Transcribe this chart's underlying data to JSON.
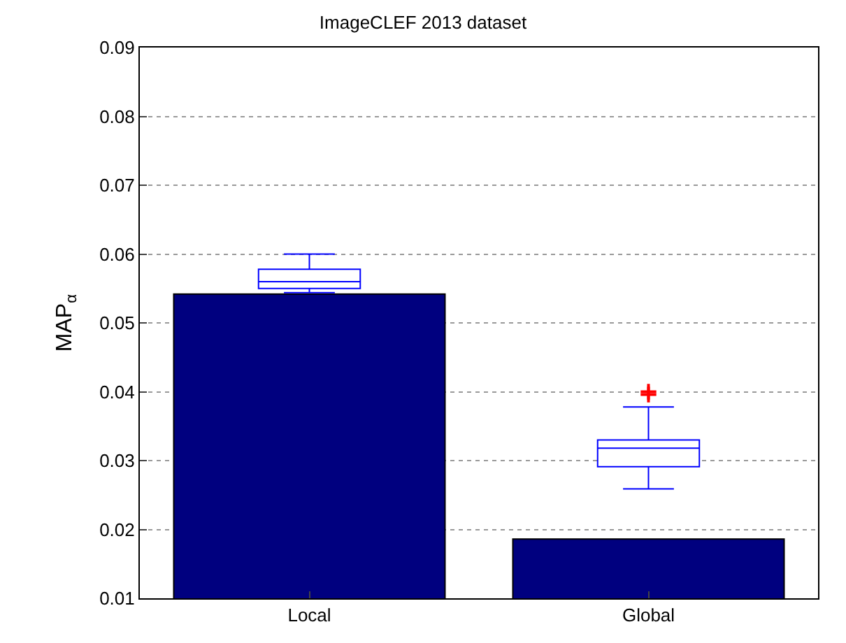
{
  "chart_data": {
    "type": "bar",
    "title": "ImageCLEF 2013 dataset",
    "ylabel": "MAP$_{α}$",
    "categories": [
      "Local",
      "Global"
    ],
    "series": [
      {
        "color": "#00007f",
        "values": [
          0.0542,
          0.0186
        ]
      },
      {
        "type": "box",
        "color": "#0000ff",
        "boxes": [
          {
            "low": 0.0544,
            "q1": 0.055,
            "median": 0.056,
            "q3": 0.0578,
            "high": 0.06
          },
          {
            "low": 0.0259,
            "q1": 0.0291,
            "median": 0.0318,
            "q3": 0.033,
            "high": 0.0378,
            "outliers": [
              0.0396,
              0.04
            ]
          }
        ]
      }
    ],
    "ylim": [
      0.01,
      0.09
    ],
    "yticks": [
      0.01,
      0.02,
      0.03,
      0.04,
      0.05,
      0.06,
      0.07,
      0.08,
      0.09
    ],
    "grid": "y"
  }
}
